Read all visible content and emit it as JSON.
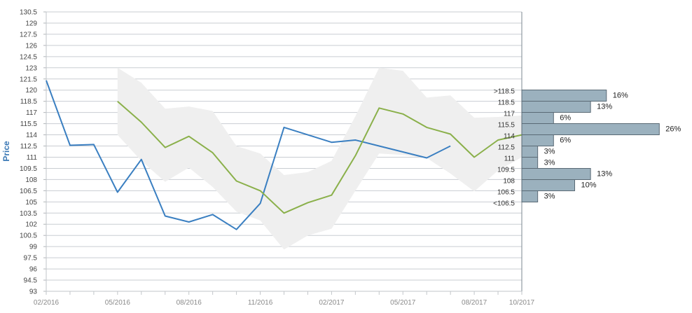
{
  "chart_data": {
    "type": "line",
    "ylabel": "Price",
    "xlabel": "",
    "ylim": [
      93,
      130.5
    ],
    "y_ticks": [
      93,
      94.5,
      96,
      97.5,
      99,
      100.5,
      102,
      103.5,
      105,
      106.5,
      108,
      109.5,
      111,
      112.5,
      114,
      115.5,
      117,
      118.5,
      120,
      121.5,
      123,
      124.5,
      126,
      127.5,
      129,
      130.5
    ],
    "x_range": [
      "2016-02",
      "2017-10"
    ],
    "x_tick_labels": [
      {
        "date": "2016-02",
        "label": "02/2016"
      },
      {
        "date": "2016-05",
        "label": "05/2016"
      },
      {
        "date": "2016-08",
        "label": "08/2016"
      },
      {
        "date": "2016-11",
        "label": "11/2016"
      },
      {
        "date": "2017-02",
        "label": "02/2017"
      },
      {
        "date": "2017-05",
        "label": "05/2017"
      },
      {
        "date": "2017-08",
        "label": "08/2017"
      },
      {
        "date": "2017-10",
        "label": "10/2017"
      }
    ],
    "grid": true,
    "series": [
      {
        "color": "#3a7fc1",
        "points": [
          [
            "2016-02",
            121.3
          ],
          [
            "2016-03",
            112.6
          ],
          [
            "2016-04",
            112.7
          ],
          [
            "2016-05",
            106.3
          ],
          [
            "2016-06",
            110.7
          ],
          [
            "2016-07",
            103.1
          ],
          [
            "2016-08",
            102.3
          ],
          [
            "2016-09",
            103.3
          ],
          [
            "2016-10",
            101.3
          ],
          [
            "2016-11",
            104.8
          ],
          [
            "2016-12",
            115.0
          ],
          [
            "2017-01",
            114.0
          ],
          [
            "2017-02",
            113.0
          ],
          [
            "2017-03",
            113.3
          ],
          [
            "2017-04",
            112.5
          ],
          [
            "2017-05",
            111.7
          ],
          [
            "2017-06",
            110.9
          ],
          [
            "2017-07",
            112.5
          ]
        ]
      },
      {
        "color": "#8ab04a",
        "points": [
          [
            "2016-05",
            118.5
          ],
          [
            "2016-06",
            115.7
          ],
          [
            "2016-07",
            112.3
          ],
          [
            "2016-08",
            113.8
          ],
          [
            "2016-09",
            111.6
          ],
          [
            "2016-10",
            107.8
          ],
          [
            "2016-11",
            106.5
          ],
          [
            "2016-12",
            103.5
          ],
          [
            "2017-01",
            104.9
          ],
          [
            "2017-02",
            105.9
          ],
          [
            "2017-03",
            111.2
          ],
          [
            "2017-04",
            117.6
          ],
          [
            "2017-05",
            116.8
          ],
          [
            "2017-06",
            115.0
          ],
          [
            "2017-07",
            114.1
          ],
          [
            "2017-08",
            111.0
          ],
          [
            "2017-09",
            113.3
          ],
          [
            "2017-10",
            114.0
          ]
        ]
      }
    ],
    "band": {
      "color": "#efefef",
      "upper": [
        [
          "2016-05",
          123.0
        ],
        [
          "2016-06",
          121.0
        ],
        [
          "2016-07",
          117.5
        ],
        [
          "2016-08",
          117.8
        ],
        [
          "2016-09",
          117.2
        ],
        [
          "2016-10",
          112.5
        ],
        [
          "2016-11",
          111.5
        ],
        [
          "2016-12",
          108.6
        ],
        [
          "2017-01",
          109.0
        ],
        [
          "2017-02",
          110.5
        ],
        [
          "2017-03",
          116.5
        ],
        [
          "2017-04",
          123.0
        ],
        [
          "2017-05",
          122.6
        ],
        [
          "2017-06",
          119.0
        ],
        [
          "2017-07",
          119.3
        ],
        [
          "2017-08",
          116.3
        ],
        [
          "2017-09",
          116.4
        ],
        [
          "2017-10",
          116.6
        ]
      ],
      "lower": [
        [
          "2016-05",
          114.0
        ],
        [
          "2016-06",
          110.5
        ],
        [
          "2016-07",
          107.7
        ],
        [
          "2016-08",
          109.6
        ],
        [
          "2016-09",
          107.0
        ],
        [
          "2016-10",
          103.7
        ],
        [
          "2016-11",
          102.5
        ],
        [
          "2016-12",
          98.6
        ],
        [
          "2017-01",
          100.5
        ],
        [
          "2017-02",
          101.4
        ],
        [
          "2017-03",
          106.5
        ],
        [
          "2017-04",
          111.5
        ],
        [
          "2017-05",
          111.3
        ],
        [
          "2017-06",
          110.9
        ],
        [
          "2017-07",
          108.8
        ],
        [
          "2017-08",
          106.4
        ],
        [
          "2017-09",
          109.2
        ],
        [
          "2017-10",
          111.0
        ]
      ]
    },
    "distribution": {
      "color": "#9bb1be",
      "bins": [
        {
          "label": ">118.5",
          "value": 16,
          "pct": "16%"
        },
        {
          "label": "118.5",
          "value": 13,
          "pct": "13%"
        },
        {
          "label": "117",
          "value": 6,
          "pct": "6%"
        },
        {
          "label": "115.5",
          "value": 26,
          "pct": "26%"
        },
        {
          "label": "114",
          "value": 6,
          "pct": "6%"
        },
        {
          "label": "112.5",
          "value": 3,
          "pct": "3%"
        },
        {
          "label": "111",
          "value": 3,
          "pct": "3%"
        },
        {
          "label": "109.5",
          "value": 13,
          "pct": "13%"
        },
        {
          "label": "108",
          "value": 10,
          "pct": "10%"
        },
        {
          "label": "106.5",
          "value": 3,
          "pct": "3%"
        },
        {
          "label": "<106.5",
          "value": null,
          "pct": ""
        }
      ]
    }
  }
}
